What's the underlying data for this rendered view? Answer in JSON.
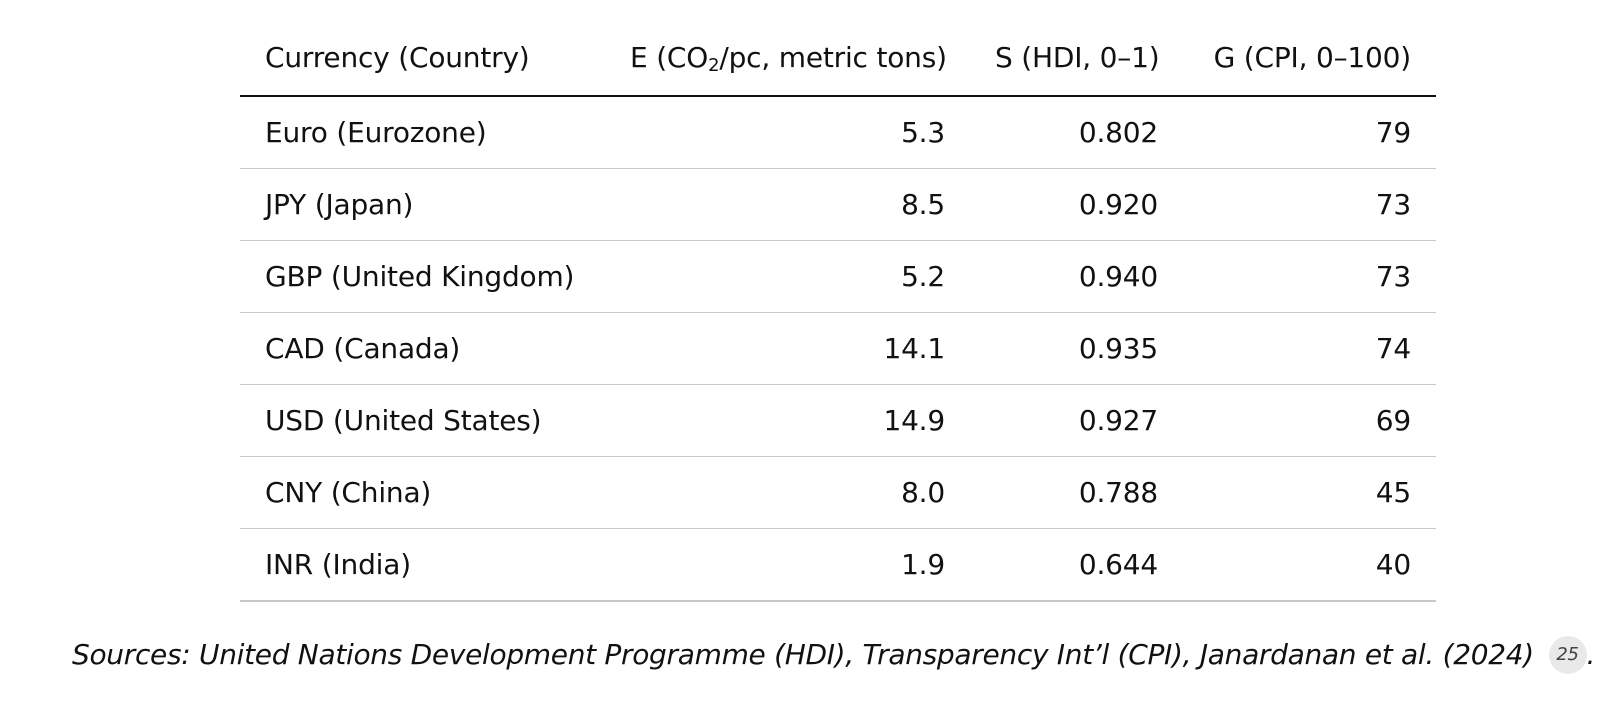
{
  "table": {
    "headers": {
      "currency": "Currency (Country)",
      "e_prefix": "E (CO",
      "e_sub": "2",
      "e_suffix": "/pc, metric tons)",
      "s": "S (HDI, 0–1)",
      "g": "G (CPI, 0–100)"
    },
    "rows": [
      {
        "currency": "Euro (Eurozone)",
        "e": "5.3",
        "s": "0.802",
        "g": "79"
      },
      {
        "currency": "JPY (Japan)",
        "e": "8.5",
        "s": "0.920",
        "g": "73"
      },
      {
        "currency": "GBP (United Kingdom)",
        "e": "5.2",
        "s": "0.940",
        "g": "73"
      },
      {
        "currency": "CAD (Canada)",
        "e": "14.1",
        "s": "0.935",
        "g": "74"
      },
      {
        "currency": "USD (United States)",
        "e": "14.9",
        "s": "0.927",
        "g": "69"
      },
      {
        "currency": "CNY (China)",
        "e": "8.0",
        "s": "0.788",
        "g": "45"
      },
      {
        "currency": "INR (India)",
        "e": "1.9",
        "s": "0.644",
        "g": "40"
      }
    ]
  },
  "caption": {
    "text": "Sources: United Nations Development Programme (HDI), Transparency Int’l (CPI), Janardanan et al. (2024)",
    "ref_number": "25",
    "end_punct": "."
  }
}
